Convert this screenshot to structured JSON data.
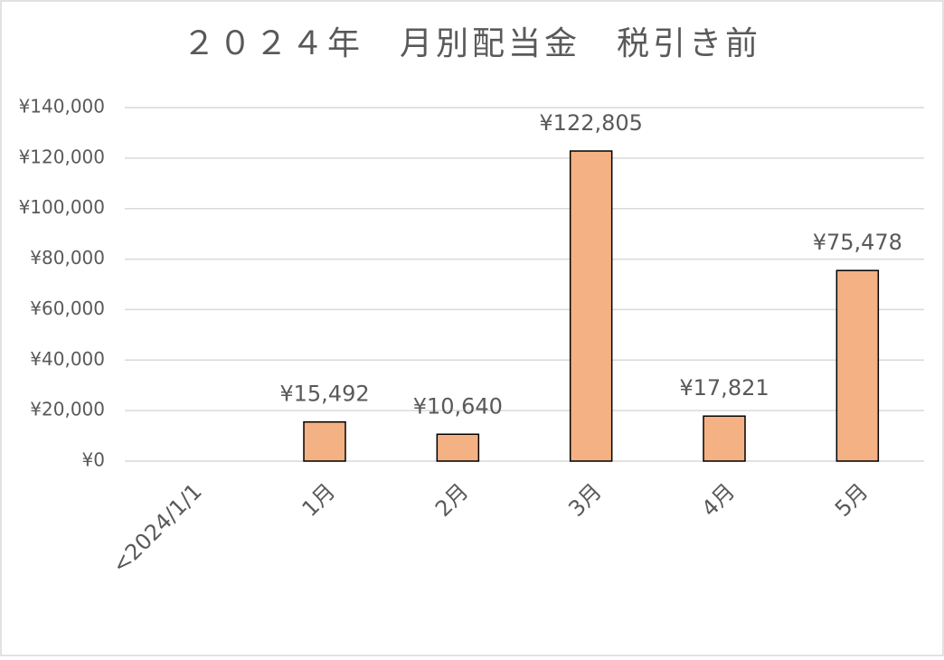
{
  "chart_data": {
    "type": "bar",
    "title": "２０２４年　月別配当金　税引き前",
    "categories": [
      "<2024/1/1",
      "1月",
      "2月",
      "3月",
      "4月",
      "5月"
    ],
    "values": [
      null,
      15492,
      10640,
      122805,
      17821,
      75478
    ],
    "value_labels": [
      null,
      "¥15,492",
      "¥10,640",
      "¥122,805",
      "¥17,821",
      "¥75,478"
    ],
    "color": "#f4b183",
    "ylim": [
      0,
      140000
    ],
    "yticks": [
      {
        "value": 0,
        "label": "¥0"
      },
      {
        "value": 20000,
        "label": "¥20,000"
      },
      {
        "value": 40000,
        "label": "¥40,000"
      },
      {
        "value": 60000,
        "label": "¥60,000"
      },
      {
        "value": 80000,
        "label": "¥80,000"
      },
      {
        "value": 100000,
        "label": "¥100,000"
      },
      {
        "value": 120000,
        "label": "¥120,000"
      },
      {
        "value": 140000,
        "label": "¥140,000"
      }
    ],
    "grid": true
  }
}
